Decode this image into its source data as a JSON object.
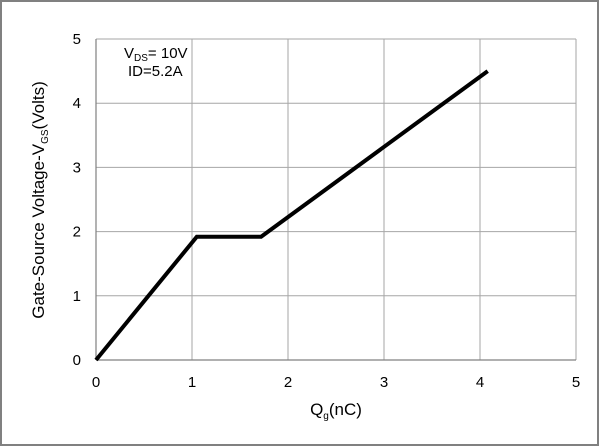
{
  "chart_data": {
    "type": "line",
    "xlabel": {
      "main": "Q",
      "sub": "g",
      "tail": "(nC)"
    },
    "ylabel": {
      "main": "Gate-Source Voltage-V",
      "sub": "GS",
      "tail": "(Volts)"
    },
    "xlim": [
      0,
      5
    ],
    "ylim": [
      0,
      5
    ],
    "xticks": [
      "0",
      "1",
      "2",
      "3",
      "4",
      "5"
    ],
    "yticks": [
      "0",
      "1",
      "2",
      "3",
      "4",
      "5"
    ],
    "grid": true,
    "annotation": {
      "line1": {
        "main": "V",
        "sub": "DS",
        "tail": "= 10V"
      },
      "line2": "ID=5.2A"
    },
    "series": [
      {
        "x": [
          0,
          1.05,
          1.72,
          4.08
        ],
        "y": [
          0,
          1.92,
          1.92,
          4.5
        ],
        "color": "#000000"
      }
    ]
  }
}
